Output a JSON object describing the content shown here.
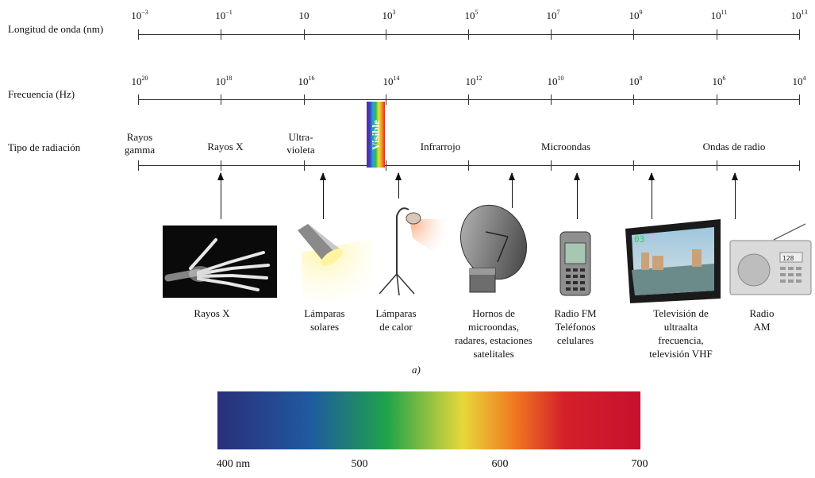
{
  "rows": {
    "wavelength_label": "Longitud de onda (nm)",
    "frequency_label": "Frecuencia (Hz)",
    "radiation_label": "Tipo de radiación"
  },
  "wavelength_ticks": [
    {
      "base": "10",
      "exp": "−3"
    },
    {
      "base": "10",
      "exp": "−1"
    },
    {
      "base": "10",
      "exp": ""
    },
    {
      "base": "10",
      "exp": "3"
    },
    {
      "base": "10",
      "exp": "5"
    },
    {
      "base": "10",
      "exp": "7"
    },
    {
      "base": "10",
      "exp": "9"
    },
    {
      "base": "10",
      "exp": "11"
    },
    {
      "base": "10",
      "exp": "13"
    }
  ],
  "frequency_ticks": [
    {
      "base": "10",
      "exp": "20"
    },
    {
      "base": "10",
      "exp": "18"
    },
    {
      "base": "10",
      "exp": "16"
    },
    {
      "base": "10",
      "exp": "14"
    },
    {
      "base": "10",
      "exp": "12"
    },
    {
      "base": "10",
      "exp": "10"
    },
    {
      "base": "10",
      "exp": "8"
    },
    {
      "base": "10",
      "exp": "6"
    },
    {
      "base": "10",
      "exp": "4"
    }
  ],
  "categories": {
    "gamma_1": "Rayos",
    "gamma_2": "gamma",
    "xray": "Rayos X",
    "uv_1": "Ultra-",
    "uv_2": "violeta",
    "visible": "Visible",
    "infrared": "Infrarrojo",
    "microwave": "Microondas",
    "radio": "Ondas de radio"
  },
  "captions": {
    "xray": [
      "Rayos X"
    ],
    "sun_lamps": [
      "Lámparas",
      "solares"
    ],
    "heat_lamps": [
      "Lámparas",
      "de calor"
    ],
    "microwave": [
      "Hornos de",
      "microondas,",
      "radares, estaciones",
      "satelitales"
    ],
    "fm": [
      "Radio FM",
      "Teléfonos",
      "celulares"
    ],
    "tv": [
      "Televisión de",
      "ultraalta",
      "frecuencia,",
      "televisión VHF"
    ],
    "am": [
      "Radio",
      "AM"
    ]
  },
  "panel_label": "a)",
  "tv_screen_text": "03",
  "radio_display_text": "128",
  "spectrum": {
    "labels": [
      "400 nm",
      "500",
      "600",
      "700"
    ],
    "colors": [
      "#2a2f7a",
      "#1f5aa0",
      "#1fa34a",
      "#e8d83a",
      "#f07a20",
      "#d4202a",
      "#c8102e"
    ]
  }
}
